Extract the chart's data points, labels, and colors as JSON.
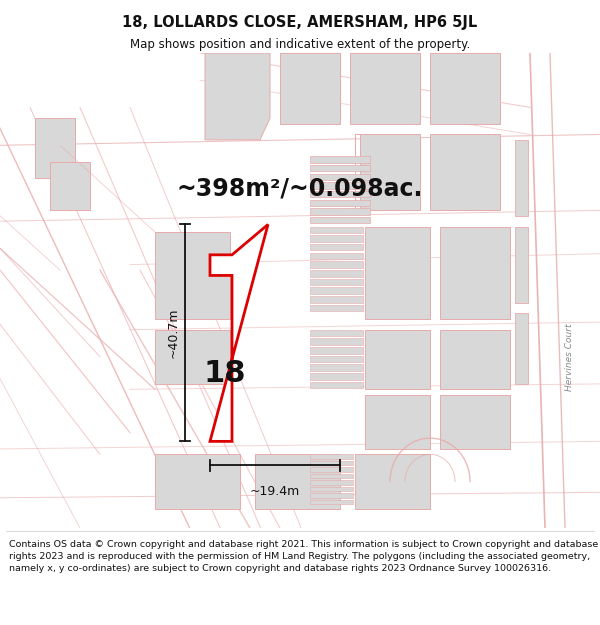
{
  "title_line1": "18, LOLLARDS CLOSE, AMERSHAM, HP6 5JL",
  "title_line2": "Map shows position and indicative extent of the property.",
  "area_text": "~398m²/~0.098ac.",
  "label_number": "18",
  "dim_width": "~19.4m",
  "dim_height": "~40.7m",
  "footer": "Contains OS data © Crown copyright and database right 2021. This information is subject to Crown copyright and database rights 2023 and is reproduced with the permission of HM Land Registry. The polygons (including the associated geometry, namely x, y co-ordinates) are subject to Crown copyright and database rights 2023 Ordnance Survey 100026316.",
  "bg_color": "#ffffff",
  "map_bg": "#ffffff",
  "building_fill": "#d8d8d8",
  "plot_edge": "#dd0000",
  "road_color": "#e8aaaa",
  "road_color2": "#f0c0c0",
  "dim_color": "#111111",
  "text_color": "#111111",
  "title_fontsize": 10.5,
  "subtitle_fontsize": 8.5,
  "area_fontsize": 17,
  "label_fontsize": 22,
  "footer_fontsize": 6.8,
  "hervines_color": "#888888"
}
